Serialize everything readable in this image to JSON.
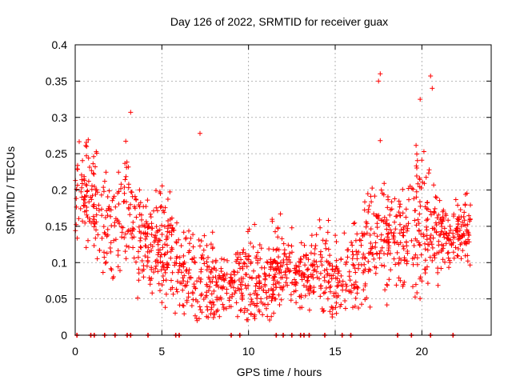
{
  "chart_data": {
    "type": "scatter",
    "title": "Day 126 of 2022, SRMTID for receiver guax",
    "xlabel": "GPS time / hours",
    "ylabel": "SRMTID / TECUs",
    "xlim": [
      0,
      24
    ],
    "ylim": [
      0,
      0.4
    ],
    "grid": true,
    "marker": "+",
    "color": "#ff0000",
    "x_ticks": [
      0,
      5,
      10,
      15,
      20
    ],
    "x_tick_labels": [
      "0",
      "5",
      "10",
      "15",
      "20"
    ],
    "y_ticks": [
      0,
      0.05,
      0.1,
      0.15,
      0.2,
      0.25,
      0.3,
      0.35,
      0.4
    ],
    "y_tick_labels": [
      "0",
      "0.05",
      "0.1",
      "0.15",
      "0.2",
      "0.25",
      "0.3",
      "0.35",
      "0.4"
    ],
    "envelope_approx": {
      "description": "approximate mean (center) and spread of SRMTID values per hour, read from point cloud",
      "hours": [
        0,
        1,
        2,
        3,
        4,
        5,
        6,
        7,
        8,
        9,
        10,
        11,
        12,
        13,
        14,
        15,
        16,
        17,
        18,
        19,
        20,
        21,
        22,
        22.8
      ],
      "center": [
        0.18,
        0.2,
        0.14,
        0.18,
        0.12,
        0.13,
        0.09,
        0.08,
        0.07,
        0.07,
        0.08,
        0.07,
        0.1,
        0.08,
        0.1,
        0.07,
        0.09,
        0.13,
        0.15,
        0.12,
        0.17,
        0.13,
        0.14,
        0.15
      ],
      "spread": [
        0.05,
        0.05,
        0.05,
        0.06,
        0.04,
        0.06,
        0.04,
        0.05,
        0.04,
        0.03,
        0.04,
        0.04,
        0.04,
        0.03,
        0.04,
        0.04,
        0.04,
        0.06,
        0.06,
        0.05,
        0.08,
        0.05,
        0.03,
        0.03
      ]
    },
    "outliers": [
      {
        "x": 3.2,
        "y": 0.307
      },
      {
        "x": 7.2,
        "y": 0.278
      },
      {
        "x": 17.6,
        "y": 0.36
      },
      {
        "x": 17.5,
        "y": 0.35
      },
      {
        "x": 19.9,
        "y": 0.325
      },
      {
        "x": 20.5,
        "y": 0.357
      },
      {
        "x": 20.6,
        "y": 0.34
      },
      {
        "x": 17.6,
        "y": 0.268
      }
    ],
    "zero_points_x": [
      0.1,
      0.9,
      1.1,
      1.7,
      2.3,
      3.0,
      3.2,
      4.2,
      5.8,
      6.0,
      9.0,
      9.5,
      11.6,
      12.0,
      12.5,
      13.0,
      13.2,
      13.5,
      14.4,
      15.4,
      15.9,
      18.6,
      19.4,
      20.5,
      21.8
    ]
  }
}
